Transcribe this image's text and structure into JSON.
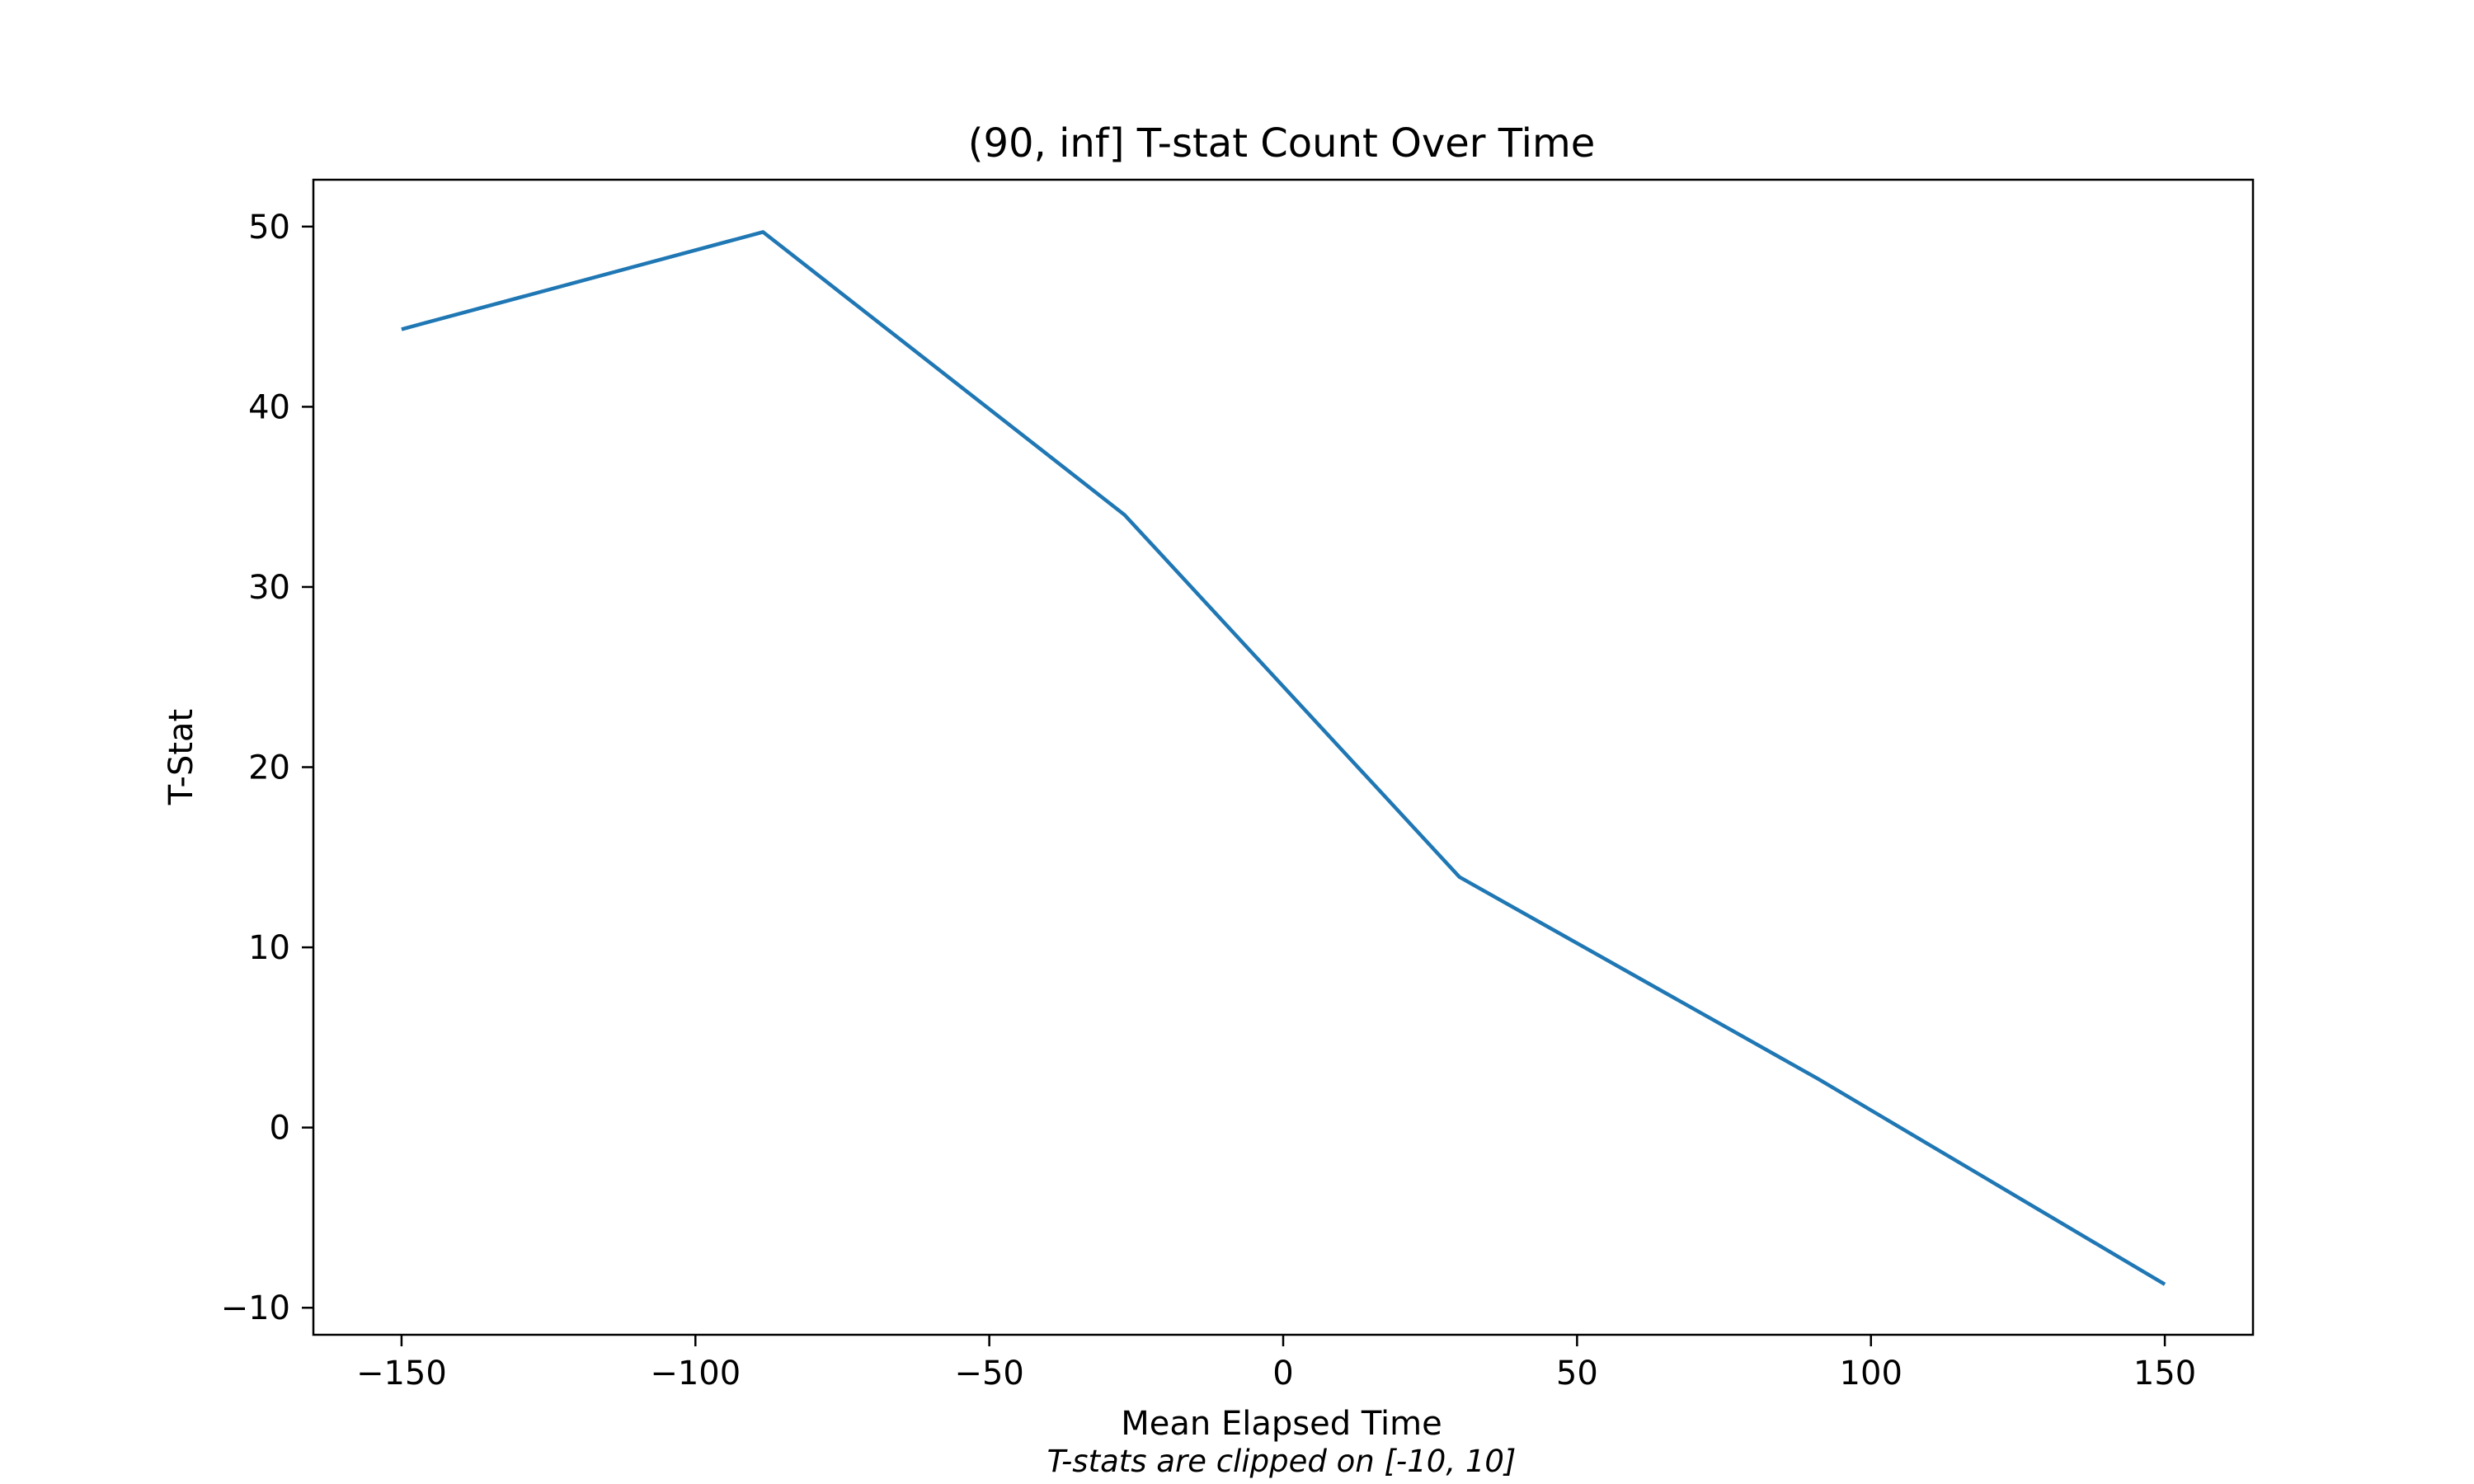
{
  "chart_data": {
    "type": "line",
    "title": "(90, inf] T-stat Count Over Time",
    "xlabel": "Mean Elapsed Time",
    "ylabel": "T-Stat",
    "caption": "T-stats are clipped on [-10, 10]",
    "xlim": [
      -165,
      165
    ],
    "ylim": [
      -11.5,
      52.6
    ],
    "x_ticks": [
      -150,
      -100,
      -50,
      0,
      50,
      100,
      150
    ],
    "x_tick_labels": [
      "−150",
      "−100",
      "−50",
      "0",
      "50",
      "100",
      "150"
    ],
    "y_ticks": [
      -10,
      0,
      10,
      20,
      30,
      40,
      50
    ],
    "y_tick_labels": [
      "−10",
      "0",
      "10",
      "20",
      "30",
      "40",
      "50"
    ],
    "grid": false,
    "series": [
      {
        "color": "#1f77b4",
        "x": [
          -150,
          -88.5,
          -27,
          30,
          91,
          150
        ],
        "y": [
          44.3,
          49.7,
          34,
          13.9,
          2.7,
          -8.7
        ]
      }
    ]
  }
}
